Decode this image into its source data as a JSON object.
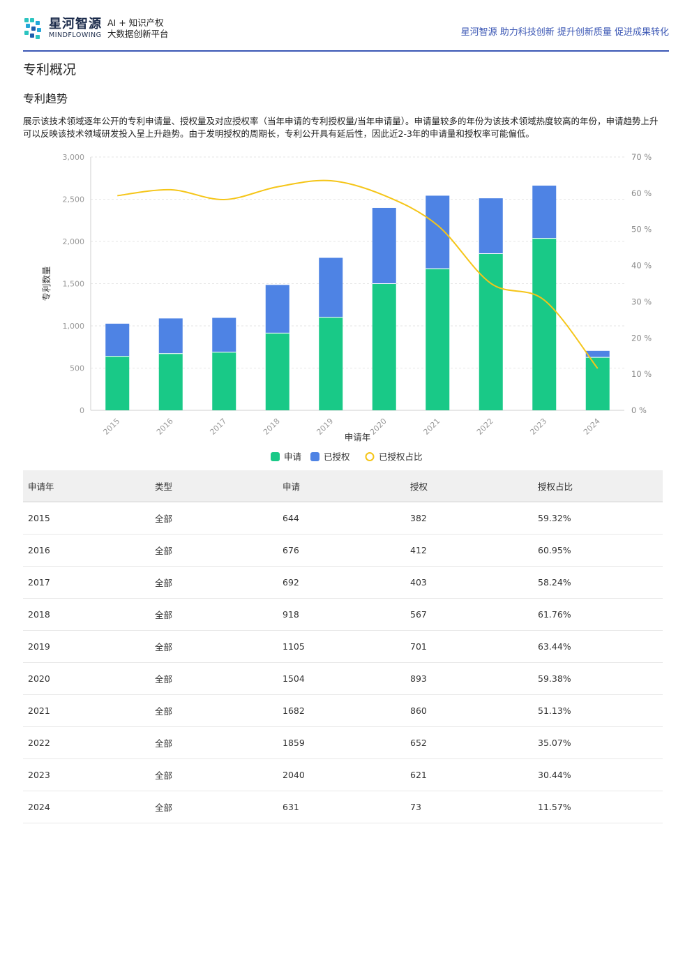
{
  "header": {
    "logo_cn": "星河智源",
    "logo_en": "MINDFLOWING",
    "tag_line1": "AI + 知识产权",
    "tag_line2": "大数据创新平台",
    "slogan": "星河智源 助力科技创新 提升创新质量 促进成果转化"
  },
  "page": {
    "title": "专利概况",
    "section_title": "专利趋势",
    "description": "展示该技术领域逐年公开的专利申请量、授权量及对应授权率（当年申请的专利授权量/当年申请量）。申请量较多的年份为该技术领域热度较高的年份，申请趋势上升可以反映该技术领域研发投入呈上升趋势。由于发明授权的周期长，专利公开具有延后性，因此近2-3年的申请量和授权率可能偏低。"
  },
  "chart_data": {
    "type": "bar",
    "stacked": true,
    "categories": [
      "2015",
      "2016",
      "2017",
      "2018",
      "2019",
      "2020",
      "2021",
      "2022",
      "2023",
      "2024"
    ],
    "xlabel": "申请年",
    "ylabel": "专利数量",
    "ylim": [
      0,
      3000
    ],
    "yticks": [
      "0",
      "500",
      "1,000",
      "1,500",
      "2,000",
      "2,500",
      "3,000"
    ],
    "y2lim": [
      0,
      70
    ],
    "y2ticks": [
      "0 %",
      "10 %",
      "20 %",
      "30 %",
      "40 %",
      "50 %",
      "60 %",
      "70 %"
    ],
    "series": [
      {
        "name": "申请",
        "kind": "bar",
        "color": "#19c987",
        "values": [
          644,
          676,
          692,
          918,
          1105,
          1504,
          1682,
          1859,
          2040,
          631
        ]
      },
      {
        "name": "已授权",
        "kind": "bar",
        "color": "#4e83e4",
        "values": [
          382,
          412,
          403,
          567,
          701,
          893,
          860,
          652,
          621,
          73
        ]
      },
      {
        "name": "已授权占比",
        "kind": "line",
        "axis": "right",
        "color": "#f5c518",
        "values": [
          59.32,
          60.95,
          58.24,
          61.76,
          63.44,
          59.38,
          51.13,
          35.07,
          30.44,
          11.57
        ]
      }
    ],
    "legend_position": "bottom",
    "grid": true
  },
  "table": {
    "headers": [
      "申请年",
      "类型",
      "申请",
      "授权",
      "授权占比"
    ],
    "rows": [
      [
        "2015",
        "全部",
        "644",
        "382",
        "59.32%"
      ],
      [
        "2016",
        "全部",
        "676",
        "412",
        "60.95%"
      ],
      [
        "2017",
        "全部",
        "692",
        "403",
        "58.24%"
      ],
      [
        "2018",
        "全部",
        "918",
        "567",
        "61.76%"
      ],
      [
        "2019",
        "全部",
        "1105",
        "701",
        "63.44%"
      ],
      [
        "2020",
        "全部",
        "1504",
        "893",
        "59.38%"
      ],
      [
        "2021",
        "全部",
        "1682",
        "860",
        "51.13%"
      ],
      [
        "2022",
        "全部",
        "1859",
        "652",
        "35.07%"
      ],
      [
        "2023",
        "全部",
        "2040",
        "621",
        "30.44%"
      ],
      [
        "2024",
        "全部",
        "631",
        "73",
        "11.57%"
      ]
    ]
  }
}
